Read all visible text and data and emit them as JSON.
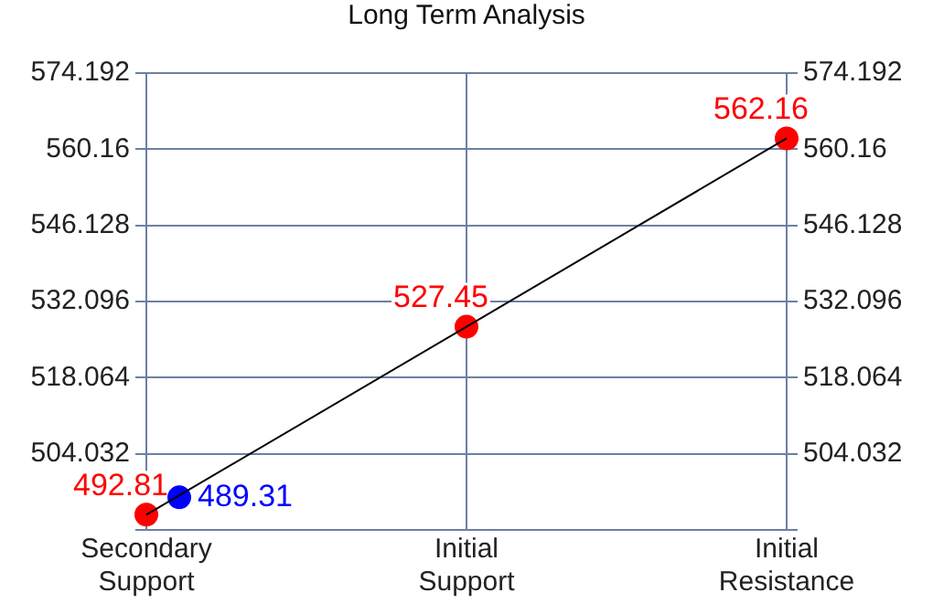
{
  "chart_data": {
    "type": "scatter",
    "title": "Long Term Analysis",
    "categories": [
      "Secondary Support",
      "Initial Support",
      "Initial Resistance"
    ],
    "ylim": [
      490,
      574.192
    ],
    "yticks": [
      {
        "value": 490,
        "label": null
      },
      504.032,
      518.064,
      532.096,
      546.128,
      560.16,
      574.192
    ],
    "y2lim": [
      490,
      574.192
    ],
    "y2ticks": [
      {
        "value": 490,
        "label": null
      },
      504.032,
      518.064,
      532.096,
      546.128,
      560.16,
      574.192
    ],
    "grid": true,
    "series": [
      {
        "type": "line",
        "color": "#000000",
        "values": [
          492.81,
          527.45,
          562.16
        ],
        "marker": "none"
      },
      {
        "type": "scatter",
        "color": "#ff0000",
        "values": [
          492.81,
          527.45,
          562.16
        ],
        "marker": "circle",
        "value_labels": [
          "492.81",
          "527.45",
          "562.16"
        ]
      },
      {
        "type": "scatter",
        "color": "#0000ff",
        "x": [
          "Secondary Support"
        ],
        "values": [
          496
        ],
        "marker": "circle"
      }
    ],
    "annotations": [
      {
        "text": "489.31",
        "x": "Secondary Support",
        "y": 496
      }
    ]
  }
}
